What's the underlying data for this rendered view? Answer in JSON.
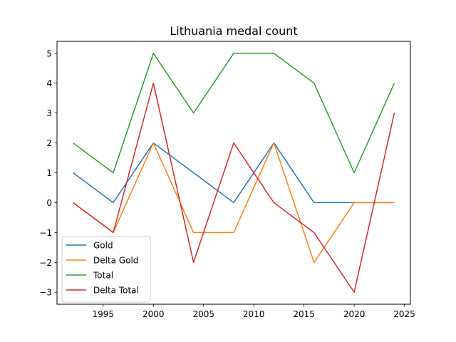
{
  "chart_data": {
    "type": "line",
    "title": "Lithuania medal count",
    "xlabel": "",
    "ylabel": "",
    "x": [
      1992,
      1996,
      2000,
      2004,
      2008,
      2012,
      2016,
      2020,
      2024
    ],
    "xlim": [
      1990.4,
      2025.6
    ],
    "ylim": [
      -3.4,
      5.4
    ],
    "xticks": [
      1995,
      2000,
      2005,
      2010,
      2015,
      2020,
      2025
    ],
    "yticks": [
      -3,
      -2,
      -1,
      0,
      1,
      2,
      3,
      4,
      5
    ],
    "ytick_labels": [
      "−3",
      "−2",
      "−1",
      "0",
      "1",
      "2",
      "3",
      "4",
      "5"
    ],
    "grid": false,
    "legend_position": "lower-left",
    "series": [
      {
        "name": "Gold",
        "color": "#1f77b4",
        "values": [
          1,
          0,
          2,
          1,
          0,
          2,
          0,
          0,
          0
        ]
      },
      {
        "name": "Delta Gold",
        "color": "#ff7f0e",
        "values": [
          0,
          -1,
          2,
          -1,
          -1,
          2,
          -2,
          0,
          0
        ]
      },
      {
        "name": "Total",
        "color": "#2ca02c",
        "values": [
          2,
          1,
          5,
          3,
          5,
          5,
          4,
          1,
          4
        ]
      },
      {
        "name": "Delta Total",
        "color": "#d62728",
        "values": [
          0,
          -1,
          4,
          -2,
          2,
          0,
          -1,
          -3,
          3
        ]
      }
    ]
  }
}
